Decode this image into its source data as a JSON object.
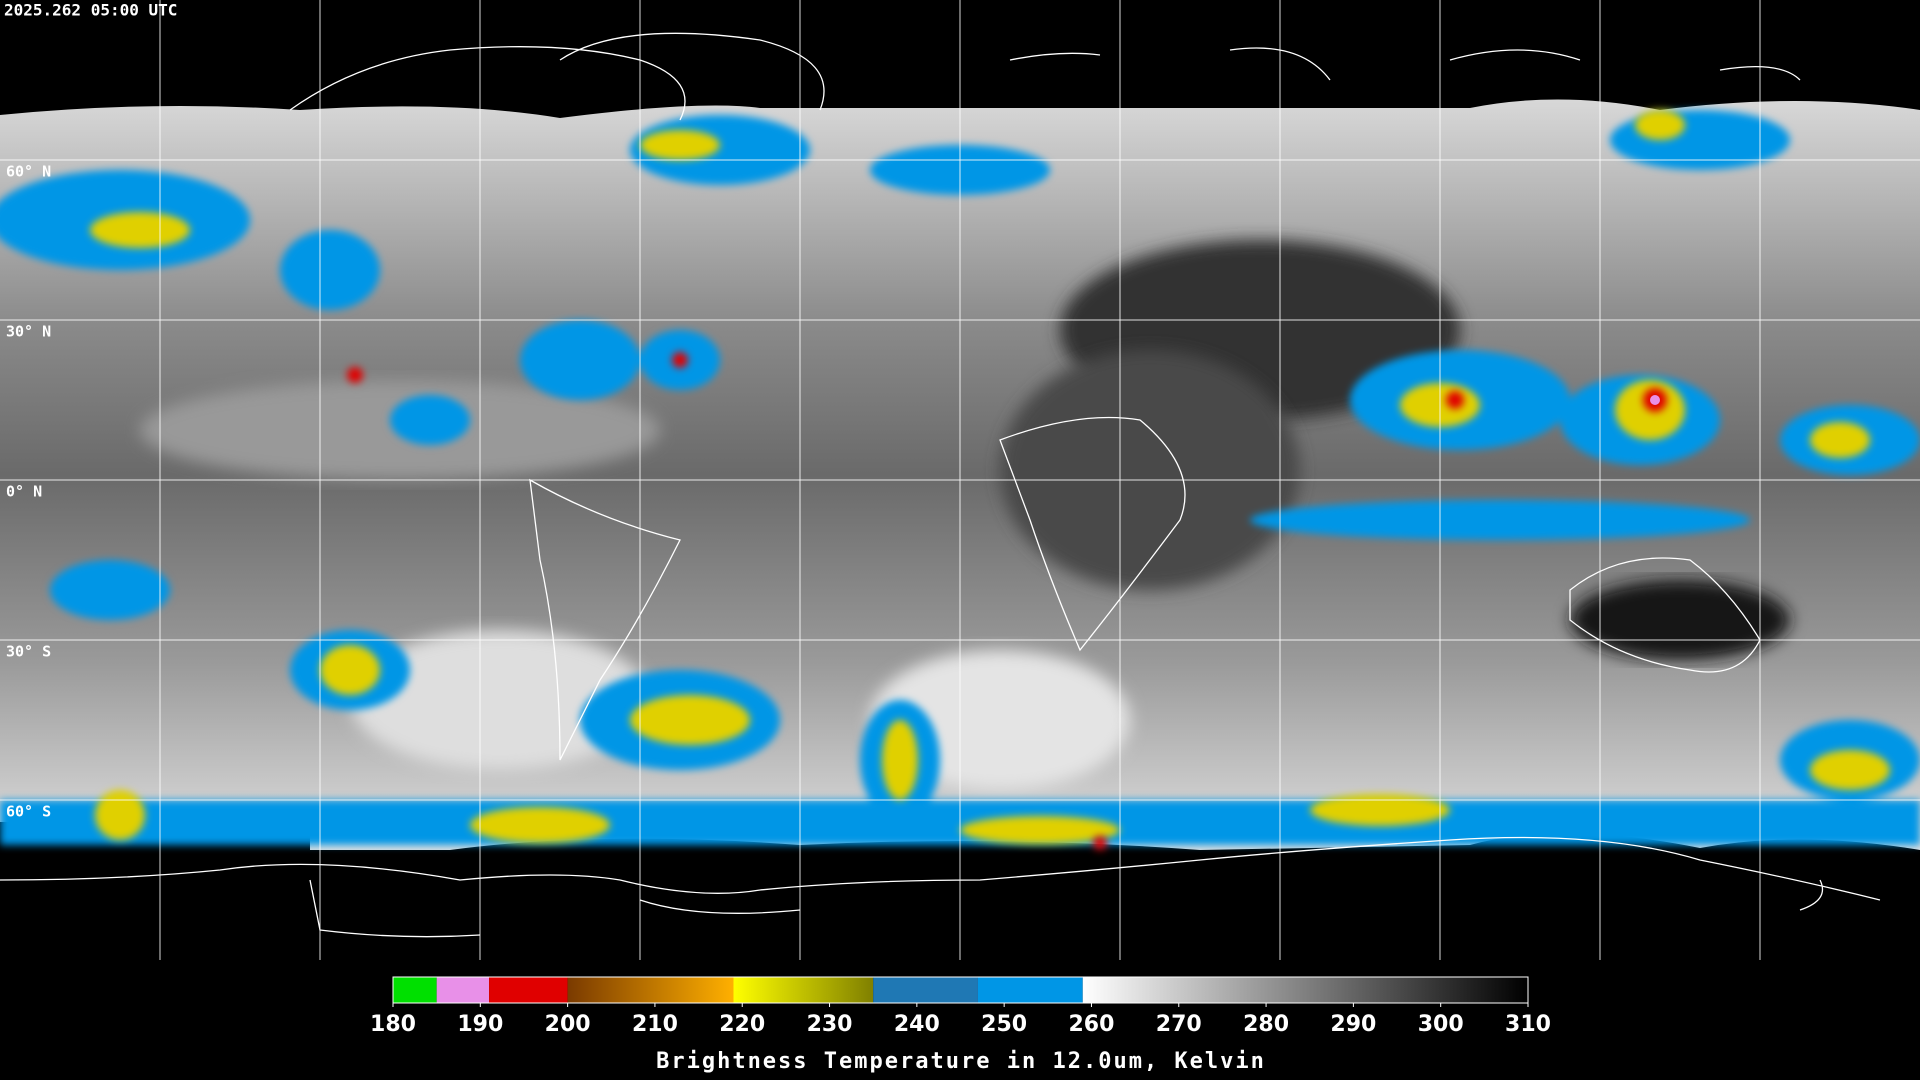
{
  "header": {
    "title": "2025.262 05:00 UTC"
  },
  "latitude_labels": [
    "60° N",
    "30° N",
    "0° N",
    "30° S",
    "60° S"
  ],
  "colorbar": {
    "label": "Brightness Temperature in 12.0um, Kelvin",
    "range": [
      180,
      310
    ],
    "ticks": [
      180,
      190,
      200,
      210,
      220,
      230,
      240,
      250,
      260,
      270,
      280,
      290,
      300,
      310
    ],
    "segments": [
      {
        "from": 180,
        "to": 185,
        "color_start": "#00e000",
        "color_end": "#00e000"
      },
      {
        "from": 185,
        "to": 191,
        "color_start": "#e890e8",
        "color_end": "#e890e8"
      },
      {
        "from": 191,
        "to": 200,
        "color_start": "#e00000",
        "color_end": "#e00000"
      },
      {
        "from": 200,
        "to": 219,
        "color_start": "#7a3a00",
        "color_end": "#ffb000"
      },
      {
        "from": 219,
        "to": 235,
        "color_start": "#ffff00",
        "color_end": "#808000"
      },
      {
        "from": 235,
        "to": 247,
        "color_start": "#1f78b4",
        "color_end": "#1f78b4"
      },
      {
        "from": 247,
        "to": 259,
        "color_start": "#0096e6",
        "color_end": "#0096e6"
      },
      {
        "from": 259,
        "to": 310,
        "color_start": "#ffffff",
        "color_end": "#000000"
      }
    ]
  }
}
